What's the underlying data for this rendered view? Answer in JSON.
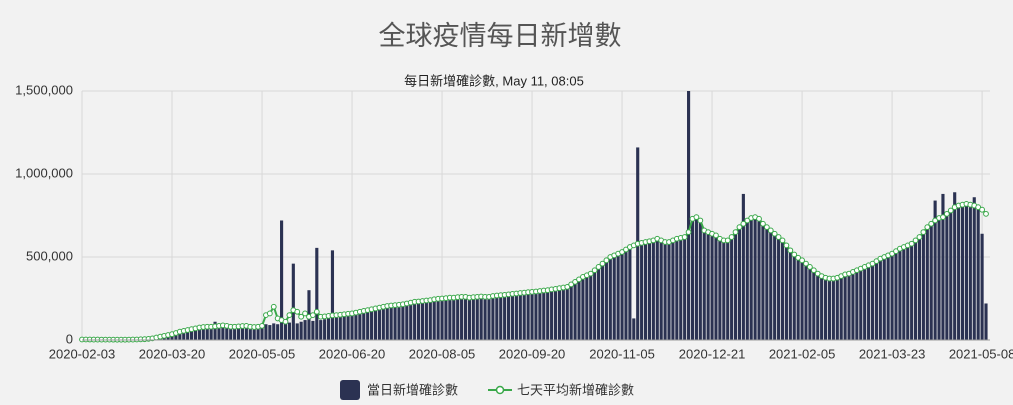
{
  "chart_data": {
    "type": "bar",
    "title": "全球疫情每日新增數",
    "subtitle": "每日新增確診數, May 11, 08:05",
    "categories": [
      "2020-02-03",
      null,
      null,
      null,
      null,
      null,
      null,
      null,
      null,
      null,
      null,
      null,
      null,
      null,
      null,
      null,
      null,
      null,
      null,
      null,
      null,
      null,
      null,
      "2020-03-20",
      null,
      null,
      null,
      null,
      null,
      null,
      null,
      null,
      null,
      null,
      null,
      null,
      null,
      null,
      null,
      null,
      null,
      null,
      null,
      null,
      null,
      null,
      "2020-05-05",
      null,
      null,
      null,
      null,
      null,
      null,
      null,
      null,
      null,
      null,
      null,
      null,
      null,
      null,
      null,
      null,
      null,
      null,
      null,
      null,
      null,
      null,
      "2020-06-20",
      null,
      null,
      null,
      null,
      null,
      null,
      null,
      null,
      null,
      null,
      null,
      null,
      null,
      null,
      null,
      null,
      null,
      null,
      null,
      null,
      null,
      null,
      "2020-08-05",
      null,
      null,
      null,
      null,
      null,
      null,
      null,
      null,
      null,
      null,
      null,
      null,
      null,
      null,
      null,
      null,
      null,
      null,
      null,
      null,
      null,
      null,
      "2020-09-20",
      null,
      null,
      null,
      null,
      null,
      null,
      null,
      null,
      null,
      null,
      null,
      null,
      null,
      null,
      null,
      null,
      null,
      null,
      null,
      null,
      null,
      null,
      "2020-11-05",
      null,
      null,
      null,
      null,
      null,
      null,
      null,
      null,
      null,
      null,
      null,
      null,
      null,
      null,
      null,
      null,
      null,
      null,
      null,
      null,
      null,
      null,
      "2020-12-21",
      null,
      null,
      null,
      null,
      null,
      null,
      null,
      null,
      null,
      null,
      null,
      null,
      null,
      null,
      null,
      null,
      null,
      null,
      null,
      null,
      null,
      null,
      "2021-02-05",
      null,
      null,
      null,
      null,
      null,
      null,
      null,
      null,
      null,
      null,
      null,
      null,
      null,
      null,
      null,
      null,
      null,
      null,
      null,
      null,
      null,
      null,
      "2021-03-23",
      null,
      null,
      null,
      null,
      null,
      null,
      null,
      null,
      null,
      null,
      null,
      null,
      null,
      null,
      null,
      null,
      null,
      null,
      null,
      null,
      null,
      null,
      "2021-05-08",
      null
    ],
    "series": [
      {
        "name": "當日新增確診數",
        "type": "bar",
        "color": "#2b3252",
        "values": [
          3000,
          3200,
          2600,
          2800,
          2400,
          2500,
          2200,
          2300,
          2000,
          2100,
          1900,
          2100,
          2300,
          2400,
          3200,
          4200,
          5500,
          7500,
          11000,
          16000,
          21000,
          27000,
          32000,
          37000,
          45000,
          52000,
          58000,
          63000,
          68000,
          73000,
          77000,
          81000,
          83000,
          82000,
          110000,
          87000,
          90000,
          84000,
          78000,
          82000,
          85000,
          86000,
          88000,
          79000,
          76000,
          83000,
          88000,
          95000,
          90000,
          100000,
          95000,
          720000,
          98000,
          105000,
          460000,
          100000,
          110000,
          120000,
          300000,
          115000,
          555000,
          120000,
          125000,
          130000,
          540000,
          135000,
          140000,
          145000,
          150000,
          165000,
          170000,
          172000,
          180000,
          178000,
          190000,
          192000,
          200000,
          198000,
          210000,
          212000,
          215000,
          210000,
          220000,
          218000,
          230000,
          228000,
          236000,
          232000,
          242000,
          238000,
          250000,
          244000,
          258000,
          246000,
          262000,
          250000,
          265000,
          255000,
          266000,
          248000,
          265000,
          255000,
          268000,
          252000,
          268000,
          258000,
          275000,
          265000,
          280000,
          270000,
          285000,
          274000,
          290000,
          280000,
          295000,
          298000,
          286000,
          302000,
          292000,
          308000,
          298000,
          316000,
          306000,
          324000,
          330000,
          340000,
          360000,
          370000,
          390000,
          395000,
          410000,
          425000,
          450000,
          465000,
          490000,
          505000,
          520000,
          530000,
          545000,
          550000,
          575000,
          130000,
          1160000,
          590000,
          600000,
          590000,
          612000,
          605000,
          610000,
          585000,
          598000,
          595000,
          620000,
          610000,
          630000,
          1500000,
          740000,
          745000,
          725000,
          665000,
          655000,
          650000,
          625000,
          615000,
          590000,
          590000,
          630000,
          655000,
          690000,
          880000,
          730000,
          745000,
          750000,
          720000,
          705000,
          675000,
          665000,
          630000,
          625000,
          595000,
          575000,
          535000,
          520000,
          490000,
          485000,
          455000,
          445000,
          415000,
          405000,
          380000,
          380000,
          365000,
          375000,
          370000,
          390000,
          390000,
          405000,
          405000,
          425000,
          425000,
          445000,
          445000,
          465000,
          470000,
          495000,
          495000,
          515000,
          525000,
          530000,
          555000,
          555000,
          575000,
          585000,
          595000,
          625000,
          645000,
          685000,
          695000,
          840000,
          740000,
          880000,
          750000,
          790000,
          890000,
          820000,
          810000,
          830000,
          810000,
          860000,
          790000,
          640000,
          220000
        ]
      },
      {
        "name": "七天平均新增確診數",
        "type": "line",
        "color": "#3aa84a",
        "values": [
          3000,
          3000,
          2800,
          2600,
          2500,
          2400,
          2300,
          2200,
          2100,
          2000,
          2000,
          2000,
          2200,
          2500,
          3000,
          4000,
          5000,
          7000,
          10000,
          15000,
          20000,
          25000,
          30000,
          35000,
          42000,
          50000,
          55000,
          60000,
          65000,
          70000,
          75000,
          78000,
          80000,
          80000,
          82000,
          85000,
          88000,
          85000,
          80000,
          80000,
          82000,
          84000,
          85000,
          80000,
          78000,
          80000,
          85000,
          150000,
          160000,
          200000,
          130000,
          120000,
          110000,
          150000,
          180000,
          170000,
          140000,
          160000,
          140000,
          150000,
          170000,
          140000,
          142000,
          145000,
          148000,
          150000,
          152000,
          155000,
          158000,
          160000,
          165000,
          170000,
          175000,
          180000,
          185000,
          190000,
          195000,
          200000,
          205000,
          208000,
          210000,
          212000,
          215000,
          220000,
          225000,
          230000,
          232000,
          235000,
          238000,
          240000,
          245000,
          248000,
          250000,
          252000,
          255000,
          255000,
          258000,
          260000,
          260000,
          255000,
          258000,
          260000,
          262000,
          260000,
          260000,
          265000,
          268000,
          270000,
          272000,
          275000,
          278000,
          280000,
          283000,
          285000,
          288000,
          290000,
          292000,
          295000,
          298000,
          300000,
          305000,
          308000,
          312000,
          316000,
          320000,
          335000,
          350000,
          365000,
          380000,
          390000,
          400000,
          420000,
          440000,
          460000,
          480000,
          500000,
          510000,
          520000,
          530000,
          545000,
          560000,
          570000,
          580000,
          585000,
          590000,
          595000,
          600000,
          610000,
          600000,
          590000,
          590000,
          600000,
          610000,
          615000,
          620000,
          650000,
          730000,
          740000,
          720000,
          660000,
          650000,
          640000,
          630000,
          610000,
          600000,
          600000,
          620000,
          650000,
          680000,
          700000,
          720000,
          735000,
          740000,
          730000,
          700000,
          680000,
          660000,
          640000,
          620000,
          600000,
          570000,
          540000,
          515000,
          495000,
          480000,
          460000,
          440000,
          420000,
          400000,
          385000,
          375000,
          370000,
          370000,
          375000,
          385000,
          395000,
          400000,
          410000,
          420000,
          430000,
          440000,
          450000,
          460000,
          475000,
          490000,
          500000,
          510000,
          520000,
          535000,
          550000,
          560000,
          570000,
          580000,
          600000,
          620000,
          650000,
          680000,
          700000,
          720000,
          735000,
          740000,
          760000,
          780000,
          800000,
          810000,
          815000,
          820000,
          815000,
          810000,
          800000,
          785000,
          760000
        ]
      }
    ],
    "ylim": [
      0,
      1500000
    ],
    "yticks": [
      0,
      {
        "value": 500000,
        "label": "500,000"
      },
      {
        "value": 1000000,
        "label": "1,000,000"
      },
      {
        "value": 1500000,
        "label": "1,500,000"
      }
    ],
    "grid": true
  }
}
